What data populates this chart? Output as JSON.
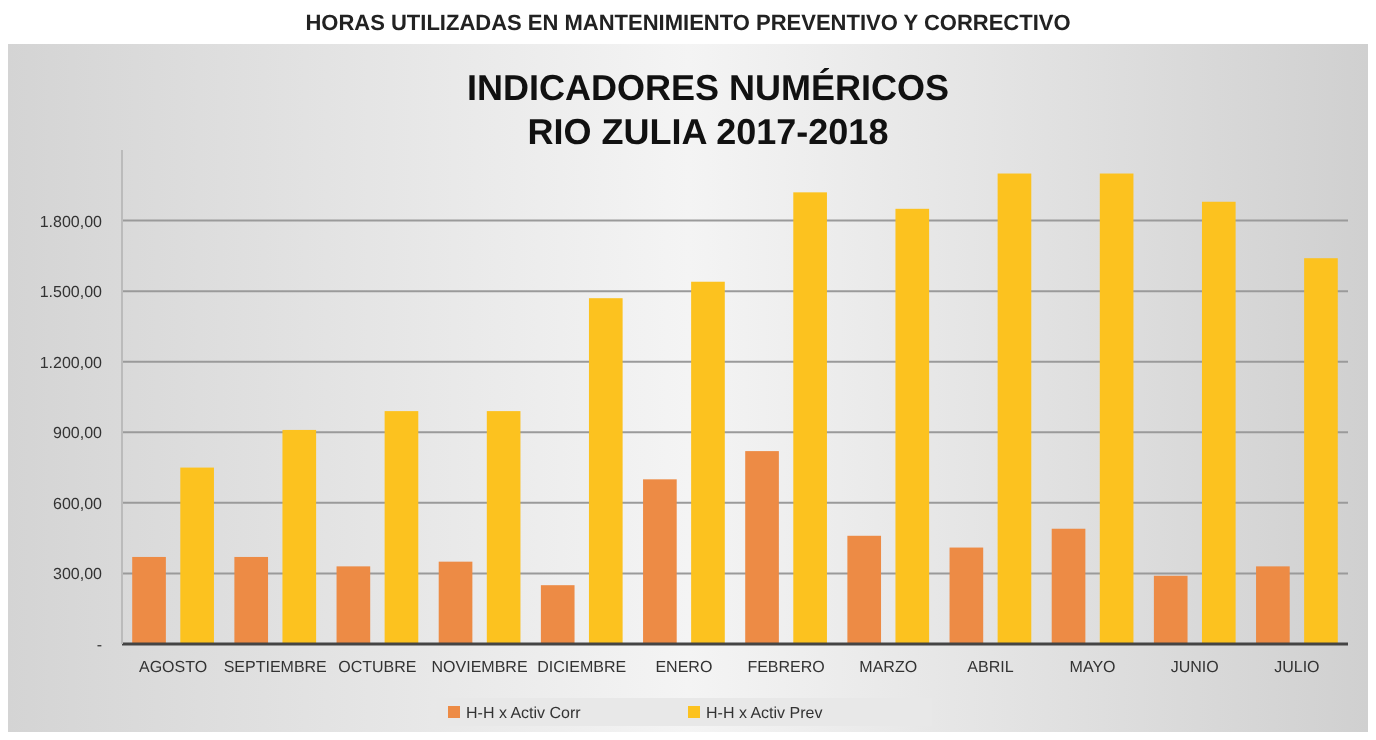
{
  "chart_data": {
    "type": "bar",
    "title": "HORAS UTILIZADAS EN MANTENIMIENTO PREVENTIVO Y CORRECTIVO",
    "subtitle": "INDICADORES NUMÉRICOS\nRIO ZULIA 2017-2018",
    "categories": [
      "AGOSTO",
      "SEPTIEMBRE",
      "OCTUBRE",
      "NOVIEMBRE",
      "DICIEMBRE",
      "ENERO",
      "FEBRERO",
      "MARZO",
      "ABRIL",
      "MAYO",
      "JUNIO",
      "JULIO"
    ],
    "series": [
      {
        "name": "H-H x Activ Corr",
        "color": "#ed8b45",
        "values": [
          370,
          370,
          330,
          350,
          250,
          700,
          820,
          460,
          410,
          490,
          290,
          330
        ]
      },
      {
        "name": "H-H x Activ Prev",
        "color": "#fcc21f",
        "values": [
          750,
          910,
          990,
          990,
          1470,
          1540,
          1920,
          1850,
          2000,
          2000,
          1880,
          1640
        ]
      }
    ],
    "ylim": [
      0,
      2100
    ],
    "yticks": [
      {
        "value": 0,
        "label": "-"
      },
      {
        "value": 300,
        "label": "300,00"
      },
      {
        "value": 600,
        "label": "600,00"
      },
      {
        "value": 900,
        "label": "900,00"
      },
      {
        "value": 1200,
        "label": "1.200,00"
      },
      {
        "value": 1500,
        "label": "1.500,00"
      },
      {
        "value": 1800,
        "label": "1.800,00"
      }
    ],
    "grid": "y",
    "legend": "bottom"
  }
}
